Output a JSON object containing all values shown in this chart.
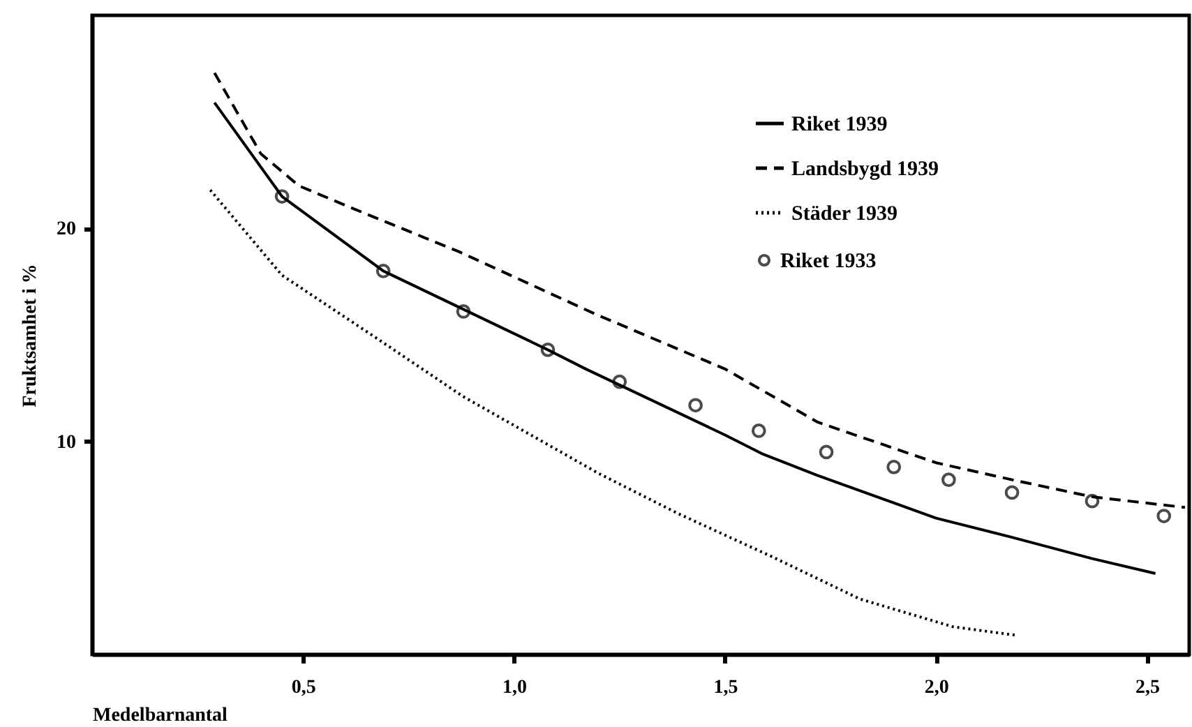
{
  "chart_data": {
    "type": "line",
    "xlabel": "Medelbarnantal",
    "ylabel": "Fruktsamhet i %",
    "xlim": [
      0,
      2.6
    ],
    "ylim": [
      0,
      30
    ],
    "xticks": [
      {
        "value": 0.5,
        "label": "0,5"
      },
      {
        "value": 1.0,
        "label": "1,0"
      },
      {
        "value": 1.5,
        "label": "1,5"
      },
      {
        "value": 2.0,
        "label": "2,0"
      },
      {
        "value": 2.5,
        "label": "2,5"
      }
    ],
    "yticks": [
      10,
      20
    ],
    "grid": false,
    "legend": "top right",
    "series": [
      {
        "name": "Riket 1939",
        "line_style": "solid",
        "color": "#000000",
        "x": [
          0.29,
          0.45,
          0.69,
          0.88,
          1.08,
          1.17,
          1.5,
          1.59,
          1.72,
          2.0,
          2.18,
          2.37,
          2.52
        ],
        "values": [
          25.9,
          21.5,
          18.0,
          16.2,
          14.3,
          13.4,
          10.3,
          9.4,
          8.4,
          6.4,
          5.5,
          4.5,
          3.8
        ]
      },
      {
        "name": "Landsbygd 1939",
        "line_style": "dashed",
        "color": "#000000",
        "x": [
          0.29,
          0.4,
          0.49,
          0.61,
          0.87,
          1.19,
          1.5,
          1.72,
          2.0,
          2.18,
          2.37,
          2.59
        ],
        "values": [
          27.3,
          23.5,
          22.0,
          21.0,
          18.9,
          16.0,
          13.4,
          10.9,
          9.0,
          8.2,
          7.4,
          6.9
        ]
      },
      {
        "name": "Städer 1939",
        "line_style": "dotted",
        "color": "#000000",
        "x": [
          0.28,
          0.45,
          0.67,
          0.88,
          1.2,
          1.39,
          1.61,
          1.82,
          2.04,
          2.19
        ],
        "values": [
          21.8,
          17.8,
          14.9,
          12.1,
          8.5,
          6.6,
          4.6,
          2.6,
          1.3,
          0.9
        ]
      },
      {
        "name": "Riket 1933",
        "type": "scatter",
        "marker": "circle",
        "color": "#000000",
        "x": [
          0.45,
          0.69,
          0.88,
          1.08,
          1.25,
          1.43,
          1.58,
          1.74,
          1.9,
          2.03,
          2.18,
          2.37,
          2.54
        ],
        "values": [
          21.5,
          18.0,
          16.1,
          14.3,
          12.8,
          11.7,
          10.5,
          9.5,
          8.8,
          8.2,
          7.6,
          7.2,
          6.5
        ]
      }
    ]
  }
}
